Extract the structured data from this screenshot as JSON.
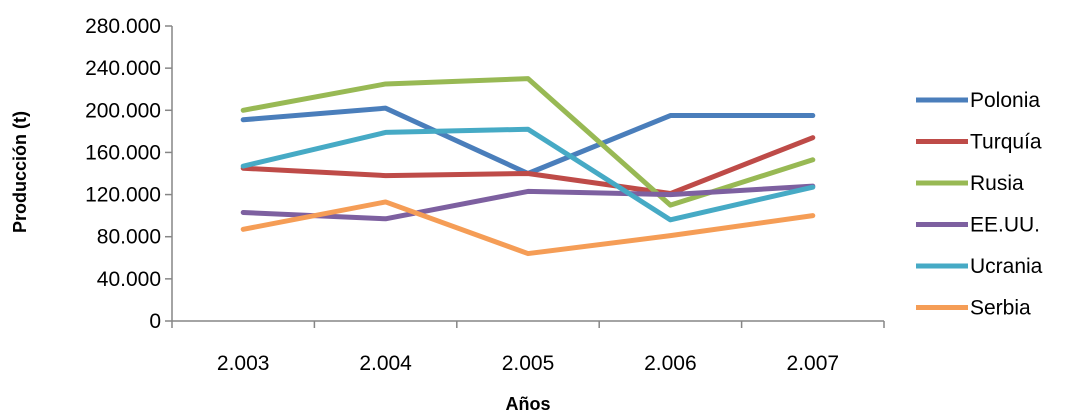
{
  "chart_data": {
    "type": "line",
    "title": "",
    "xlabel": "Años",
    "ylabel": "Producción (t)",
    "categories": [
      "2.003",
      "2.004",
      "2.005",
      "2.006",
      "2.007"
    ],
    "ylim": [
      0,
      280000
    ],
    "yticks": [
      0,
      40000,
      80000,
      120000,
      160000,
      200000,
      240000,
      280000
    ],
    "ytick_labels": [
      "0",
      "40.000",
      "80.000",
      "120.000",
      "160.000",
      "200.000",
      "240.000",
      "280.000"
    ],
    "grid": false,
    "legend_position": "right",
    "series": [
      {
        "name": "Polonia",
        "color": "#4A7EBB",
        "values": [
          191000,
          202000,
          140000,
          195000,
          195000
        ]
      },
      {
        "name": "Turquía",
        "color": "#BE4B48",
        "values": [
          145000,
          138000,
          140000,
          121000,
          174000
        ]
      },
      {
        "name": "Rusia",
        "color": "#98B954",
        "values": [
          200000,
          225000,
          230000,
          110000,
          153000
        ]
      },
      {
        "name": "EE.UU.",
        "color": "#7D60A0",
        "values": [
          103000,
          97000,
          123000,
          120000,
          128000
        ]
      },
      {
        "name": "Ucrania",
        "color": "#46AAC5",
        "values": [
          147000,
          179000,
          182000,
          96000,
          127000
        ]
      },
      {
        "name": "Serbia",
        "color": "#F59D56",
        "values": [
          87000,
          113000,
          64000,
          81000,
          100000
        ]
      }
    ]
  }
}
